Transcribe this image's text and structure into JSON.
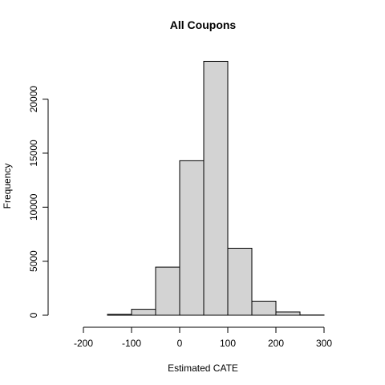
{
  "chart_data": {
    "type": "bar",
    "title": "All Coupons",
    "xlabel": "Estimated CATE",
    "ylabel": "Frequency",
    "bins": [
      {
        "start": -200,
        "end": -150,
        "count": 0
      },
      {
        "start": -150,
        "end": -100,
        "count": 80
      },
      {
        "start": -100,
        "end": -50,
        "count": 550
      },
      {
        "start": -50,
        "end": 0,
        "count": 4450
      },
      {
        "start": 0,
        "end": 50,
        "count": 14300
      },
      {
        "start": 50,
        "end": 100,
        "count": 23500
      },
      {
        "start": 100,
        "end": 150,
        "count": 6200
      },
      {
        "start": 150,
        "end": 200,
        "count": 1300
      },
      {
        "start": 200,
        "end": 250,
        "count": 300
      },
      {
        "start": 250,
        "end": 300,
        "count": 20
      }
    ],
    "xticks": [
      -200,
      -100,
      0,
      100,
      200,
      300
    ],
    "yticks": [
      0,
      5000,
      10000,
      15000,
      20000
    ],
    "xlim": [
      -250,
      350
    ],
    "ylim": [
      0,
      24500
    ],
    "grid": false,
    "legend": "none"
  }
}
